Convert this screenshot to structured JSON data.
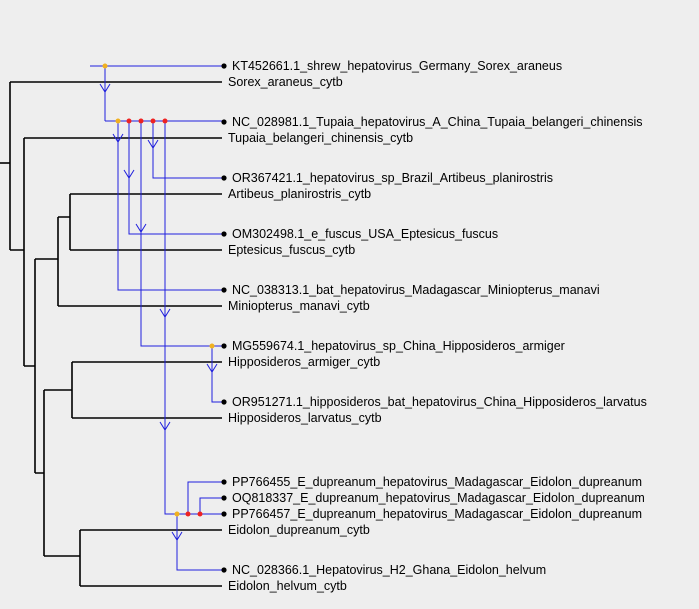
{
  "viruses": [
    "KT452661.1_shrew_hepatovirus_Germany_Sorex_araneus",
    "NC_028981.1_Tupaia_hepatovirus_A_China_Tupaia_belangeri_chinensis",
    "OR367421.1_hepatovirus_sp_Brazil_Artibeus_planirostris",
    "OM302498.1_e_fuscus_USA_Eptesicus_fuscus",
    "NC_038313.1_bat_hepatovirus_Madagascar_Miniopterus_manavi",
    "MG559674.1_hepatovirus_sp_China_Hipposideros_armiger",
    "OR951271.1_hipposideros_bat_hepatovirus_China_Hipposideros_larvatus",
    "PP766455_E_dupreanum_hepatovirus_Madagascar_Eidolon_dupreanum",
    "OQ818337_E_dupreanum_hepatovirus_Madagascar_Eidolon_dupreanum",
    "PP766457_E_dupreanum_hepatovirus_Madagascar_Eidolon_dupreanum",
    "NC_028366.1_Hepatovirus_H2_Ghana_Eidolon_helvum"
  ],
  "hosts": [
    "Sorex_araneus_cytb",
    "Tupaia_belangeri_chinensis_cytb",
    "Artibeus_planirostris_cytb",
    "Eptesicus_fuscus_cytb",
    "Miniopterus_manavi_cytb",
    "Hipposideros_armiger_cytb",
    "Hipposideros_larvatus_cytb",
    "Eidolon_dupreanum_cytb",
    "Eidolon_helvum_cytb"
  ],
  "colors": {
    "background": "#eeeeee",
    "host_tree": "#000000",
    "virus_tree": "#2020dd",
    "cospeciation_node": "#ee2222",
    "duplication_node": "#f0b020",
    "leaf_dot": "#000000"
  }
}
